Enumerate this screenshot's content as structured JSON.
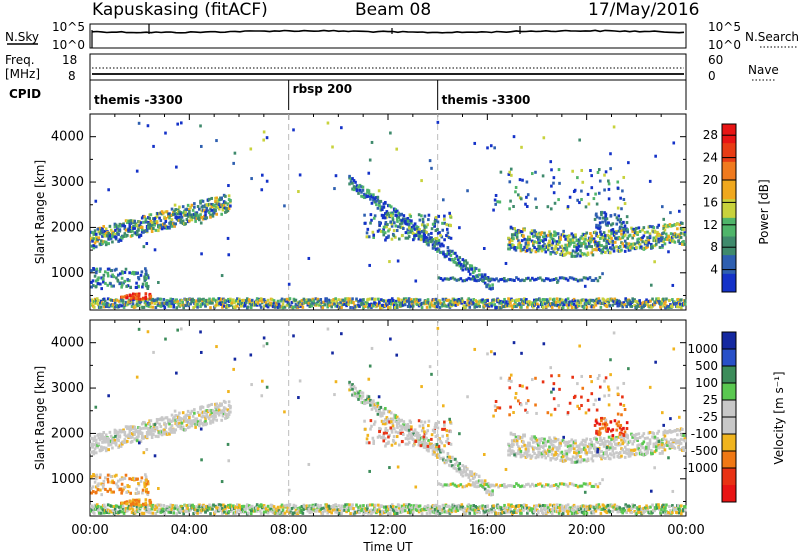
{
  "header": {
    "station": "Kapuskasing (fitACF)",
    "beam": "Beam 08",
    "date": "17/May/2016"
  },
  "top_panel": {
    "nsky_label": "N.Sky",
    "nsky_ticks": [
      "10^5",
      "10^0"
    ],
    "nsearch_label": "N.Search",
    "nsearch_ticks": [
      "10^5",
      "10^0"
    ],
    "freq_label": "Freq.",
    "freq_unit": "[MHz]",
    "freq_ticks": [
      "18",
      "8"
    ],
    "nave_label": "Nave",
    "nave_ticks": [
      "60",
      "0"
    ],
    "cpid_label": "CPID"
  },
  "cpid_segments": [
    {
      "label": "themis -3300",
      "start_hour": 0
    },
    {
      "label": "rbsp 200",
      "start_hour": 8
    },
    {
      "label": "themis -3300",
      "start_hour": 14
    }
  ],
  "time_ticks": [
    "00:00",
    "04:00",
    "08:00",
    "12:00",
    "16:00",
    "20:00",
    "00:00"
  ],
  "xlabel": "Time UT",
  "colors": {
    "power": [
      "#1432c8",
      "#2e5fb0",
      "#3f8a6c",
      "#4fb56a",
      "#c8d23c",
      "#f0a81e",
      "#f07a1e",
      "#e83c14",
      "#e81414"
    ],
    "velocity": [
      "#1428a0",
      "#2850c8",
      "#3c8c5a",
      "#5ac850",
      "#c8c8c8",
      "#c8c8c8",
      "#f0b41e",
      "#f07814",
      "#e83214",
      "#e81414"
    ]
  },
  "chart_data": [
    {
      "type": "heatmap",
      "name": "power",
      "ylabel": "Slant Range [km]",
      "xlabel": "",
      "xlim": [
        0,
        24
      ],
      "ylim": [
        180,
        4500
      ],
      "yticks": [
        1000,
        2000,
        3000,
        4000
      ],
      "colorbar_label": "Power [dB]",
      "colorbar_ticks": [
        4,
        8,
        12,
        16,
        20,
        24,
        28
      ],
      "colorbar_range": [
        0,
        30
      ],
      "features": [
        {
          "desc": "band",
          "hours": [
            0,
            5.6
          ],
          "range_km": [
            1800,
            2600
          ],
          "db": 10
        },
        {
          "desc": "arc",
          "hours": [
            10.5,
            16
          ],
          "range_km": [
            3000,
            700
          ],
          "db": 6
        },
        {
          "desc": "band",
          "hours": [
            17,
            24
          ],
          "range_km": [
            1500,
            1800
          ],
          "db": 14
        },
        {
          "desc": "ground",
          "hours": [
            0,
            24
          ],
          "range_km": [
            200,
            400
          ],
          "db": 16
        }
      ]
    },
    {
      "type": "heatmap",
      "name": "velocity",
      "ylabel": "Slant Range [km]",
      "xlabel": "Time UT",
      "xlim": [
        0,
        24
      ],
      "ylim": [
        180,
        4500
      ],
      "yticks": [
        1000,
        2000,
        3000,
        4000
      ],
      "colorbar_label": "Velocity [m s⁻¹]",
      "colorbar_ticks": [
        "1000",
        "500",
        "100",
        "25",
        "-25",
        "-100",
        "-500",
        "-1000"
      ]
    }
  ]
}
